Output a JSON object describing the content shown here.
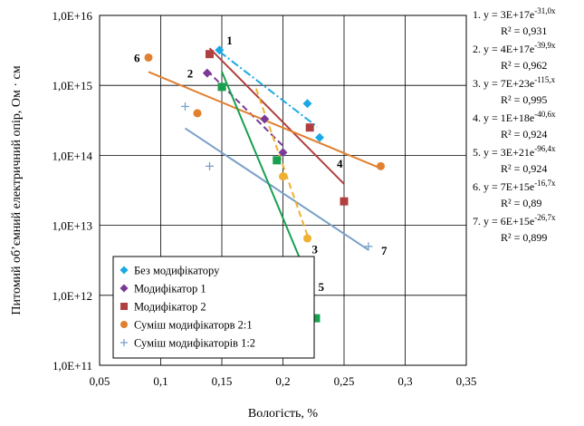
{
  "chart_data": {
    "type": "scatter",
    "xlabel": "Вологість, %",
    "ylabel": "Питомий об’ємний електричний опір, Ом · см",
    "x_ticks": [
      "0,05",
      "0,1",
      "0,15",
      "0,2",
      "0,25",
      "0,3",
      "0,35"
    ],
    "x_tick_values": [
      0.05,
      0.1,
      0.15,
      0.2,
      0.25,
      0.3,
      0.35
    ],
    "y_ticks": [
      "1,0E+11",
      "1,0E+12",
      "1,0E+13",
      "1,0E+14",
      "1,0E+15",
      "1,0E+16"
    ],
    "xlim": [
      0.05,
      0.35
    ],
    "ylim_log10": [
      11,
      16
    ],
    "y_scale": "log",
    "grid": true,
    "legend_position": "bottom-left",
    "series": [
      {
        "name": "Без модифікатору",
        "color": "#1aa9e6",
        "marker": "diamond",
        "line_style": "dashdot",
        "points": [
          [
            0.148,
            3200000000000000.0
          ],
          [
            0.22,
            550000000000000.0
          ],
          [
            0.23,
            180000000000000.0
          ]
        ],
        "trend": {
          "x_start": 0.148,
          "x_end": 0.228,
          "a": 3e+17,
          "b": -31.0
        },
        "trend_label": "1",
        "equation": "1. y = 3E+17e",
        "exponent": "-31,0x",
        "r2": "R² = 0,931"
      },
      {
        "name": "Модифікатор 1",
        "color": "#7a3a96",
        "marker": "diamond",
        "line_style": "dashed",
        "points": [
          [
            0.138,
            1500000000000000.0
          ],
          [
            0.185,
            330000000000000.0
          ],
          [
            0.2,
            110000000000000.0
          ]
        ],
        "trend": {
          "x_start": 0.138,
          "x_end": 0.2,
          "a": 4e+17,
          "b": -39.9
        },
        "trend_label": "2",
        "equation": "2. y = 4E+17e",
        "exponent": "-39,9x",
        "r2": "R² = 0,962"
      },
      {
        "name": "Модифікатор 2",
        "color": "#b04040",
        "marker": "square",
        "line_style": "solid",
        "points": [
          [
            0.14,
            2800000000000000.0
          ],
          [
            0.222,
            250000000000000.0
          ],
          [
            0.25,
            22000000000000.0
          ]
        ],
        "trend": {
          "x_start": 0.14,
          "x_end": 0.25,
          "a": 1e+18,
          "b": -40.6
        },
        "trend_label": "4",
        "equation": "4. y = 1E+18e",
        "exponent": "-40,6x",
        "r2": "R² = 0,924"
      },
      {
        "name": "Суміш модифікаторв 2:1",
        "color": "#e08030",
        "marker": "circle",
        "line_style": "solid",
        "points": [
          [
            0.09,
            2500000000000000.0
          ],
          [
            0.13,
            400000000000000.0
          ],
          [
            0.28,
            70000000000000.0
          ]
        ],
        "trend": {
          "x_start": 0.09,
          "x_end": 0.28,
          "a": 7000000000000000.0,
          "b": -16.7
        },
        "trend_label": "6",
        "equation": "6. y = 7E+15e",
        "exponent": "-16,7x",
        "r2": "R² = 0,89"
      },
      {
        "name": "Суміш модифікаторів 1:2",
        "color": "#7aa0c8",
        "marker": "plus",
        "line_style": "solid",
        "points": [
          [
            0.12,
            500000000000000.0
          ],
          [
            0.14,
            70000000000000.0
          ],
          [
            0.27,
            5000000000000.0
          ]
        ],
        "trend": {
          "x_start": 0.12,
          "x_end": 0.27,
          "a": 6000000000000000.0,
          "b": -26.7
        },
        "trend_label": "7",
        "equation": "7. y = 6E+15e",
        "exponent": "-26,7x",
        "r2": "R² = 0,899"
      },
      {
        "name": "",
        "color": "#18a050",
        "marker": "square",
        "line_style": "solid",
        "in_legend": false,
        "points": [
          [
            0.15,
            950000000000000.0
          ],
          [
            0.195,
            85000000000000.0
          ],
          [
            0.227,
            470000000000.0
          ]
        ],
        "trend": {
          "x_start": 0.15,
          "x_end": 0.223,
          "a": 3e+21,
          "b": -96.4
        },
        "trend_label": "5",
        "equation": "5. y = 3E+21e",
        "exponent": "-96,4x",
        "r2": "R² = 0,924"
      },
      {
        "name": "",
        "color": "#f0b030",
        "marker": "circle",
        "line_style": "dashed",
        "in_legend": false,
        "points": [
          [
            0.2,
            50000000000000.0
          ],
          [
            0.22,
            6500000000000.0
          ]
        ],
        "trend": {
          "x_start": 0.178,
          "x_end": 0.22,
          "a": 7e+23,
          "b": -115
        },
        "trend_label": "3",
        "equation": "3. y = 7E+23e",
        "exponent": "-115,x",
        "r2": "R² = 0,995"
      }
    ],
    "equation_order": [
      0,
      1,
      6,
      2,
      5,
      3,
      4
    ]
  }
}
